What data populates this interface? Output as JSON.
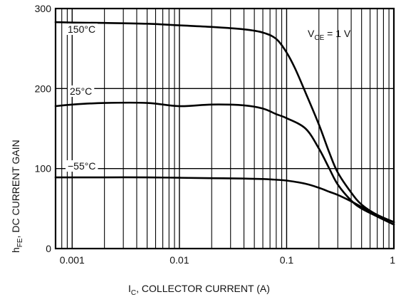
{
  "chart_data": {
    "type": "line",
    "xscale": "log",
    "xlim": [
      0.0007,
      1
    ],
    "ylim": [
      0,
      300
    ],
    "xticks": [
      {
        "value": 0.001,
        "label": "0.001"
      },
      {
        "value": 0.01,
        "label": "0.01"
      },
      {
        "value": 0.1,
        "label": "0.1"
      },
      {
        "value": 1,
        "label": "1"
      }
    ],
    "yticks": [
      {
        "value": 0,
        "label": "0"
      },
      {
        "value": 100,
        "label": "100"
      },
      {
        "value": 200,
        "label": "200"
      },
      {
        "value": 300,
        "label": "300"
      }
    ],
    "xlabel": {
      "main": "I",
      "sub": "C",
      "rest": ", COLLECTOR CURRENT (A)"
    },
    "ylabel": {
      "main": "h",
      "sub": "FE",
      "rest": ", DC CURRENT GAIN"
    },
    "condition": {
      "main": "V",
      "sub": "CE",
      "rest": " = 1 V"
    },
    "grid": true,
    "series": [
      {
        "name": "150°C",
        "x": [
          0.0007,
          0.001,
          0.002,
          0.005,
          0.01,
          0.02,
          0.04,
          0.06,
          0.08,
          0.1,
          0.12,
          0.15,
          0.2,
          0.25,
          0.3,
          0.4,
          0.5,
          0.7,
          1.0
        ],
        "y": [
          283,
          282.5,
          282,
          281,
          279,
          277,
          274,
          270,
          262,
          245,
          225,
          195,
          155,
          120,
          95,
          70,
          55,
          42,
          33
        ]
      },
      {
        "name": "25°C",
        "x": [
          0.0007,
          0.001,
          0.002,
          0.005,
          0.01,
          0.02,
          0.04,
          0.06,
          0.08,
          0.1,
          0.15,
          0.2,
          0.25,
          0.3,
          0.4,
          0.5,
          0.7,
          1.0
        ],
        "y": [
          178,
          180,
          182,
          182,
          178,
          180,
          179,
          175,
          168,
          163,
          150,
          125,
          100,
          80,
          60,
          50,
          40,
          30
        ]
      },
      {
        "name": "−55°C",
        "x": [
          0.0007,
          0.001,
          0.002,
          0.005,
          0.01,
          0.02,
          0.04,
          0.06,
          0.08,
          0.1,
          0.15,
          0.2,
          0.25,
          0.3,
          0.4,
          0.5,
          0.7,
          1.0
        ],
        "y": [
          89,
          89,
          89,
          89,
          88.5,
          88,
          87.5,
          87,
          86,
          85,
          81,
          76,
          71,
          67,
          59,
          52,
          42,
          33
        ]
      }
    ]
  }
}
